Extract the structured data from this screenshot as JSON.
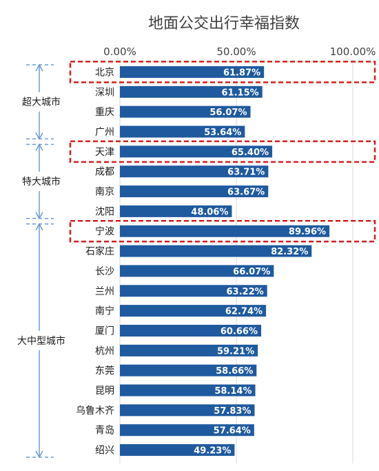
{
  "chart_data": {
    "type": "bar",
    "orientation": "horizontal",
    "title": "地面公交出行幸福指数",
    "xlim": [
      0,
      1.0
    ],
    "x_ticks": [
      "0.00%",
      "50.00%",
      "100.00%"
    ],
    "grid": true,
    "bar_color": "#1f5a9e",
    "highlight_color": "#d11f1f",
    "categories": [
      "北京",
      "深圳",
      "重庆",
      "广州",
      "天津",
      "成都",
      "南京",
      "沈阳",
      "宁波",
      "石家庄",
      "长沙",
      "兰州",
      "南宁",
      "厦门",
      "杭州",
      "东莞",
      "昆明",
      "乌鲁木齐",
      "青岛",
      "绍兴"
    ],
    "values": [
      0.6187,
      0.6115,
      0.5607,
      0.5364,
      0.654,
      0.6371,
      0.6367,
      0.4806,
      0.8996,
      0.8232,
      0.6607,
      0.6322,
      0.6274,
      0.6066,
      0.5921,
      0.5866,
      0.5814,
      0.5783,
      0.5764,
      0.4923
    ],
    "labels": [
      "61.87%",
      "61.15%",
      "56.07%",
      "53.64%",
      "65.40%",
      "63.71%",
      "63.67%",
      "48.06%",
      "89.96%",
      "82.32%",
      "66.07%",
      "63.22%",
      "62.74%",
      "60.66%",
      "59.21%",
      "58.66%",
      "58.14%",
      "57.83%",
      "57.64%",
      "49.23%"
    ],
    "highlighted": [
      "北京",
      "天津",
      "宁波"
    ],
    "groups": [
      {
        "label": "超大城市",
        "start": 0,
        "end": 3
      },
      {
        "label": "特大城市",
        "start": 4,
        "end": 7
      },
      {
        "label": "大中型城市",
        "start": 8,
        "end": 19
      }
    ]
  }
}
